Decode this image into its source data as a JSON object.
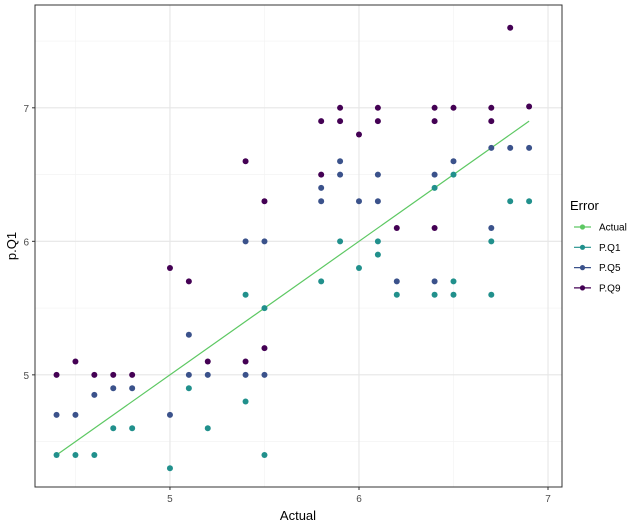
{
  "chart_data": {
    "type": "scatter",
    "title": "",
    "xlabel": "Actual",
    "ylabel": "p.Q1",
    "xlim": [
      4.286,
      7.074
    ],
    "ylim": [
      4.16,
      7.77
    ],
    "xticks": [
      5,
      6,
      7
    ],
    "yticks": [
      5,
      6,
      7
    ],
    "grid": true,
    "legend": {
      "title": "Error",
      "placement": "right"
    },
    "line": {
      "name": "Actual",
      "color": "#5dc863",
      "x": [
        4.4,
        6.9
      ],
      "y": [
        4.4,
        6.9
      ]
    },
    "series": [
      {
        "name": "P.Q1",
        "color": "#21908c",
        "points": [
          [
            4.4,
            4.4
          ],
          [
            4.5,
            4.4
          ],
          [
            4.6,
            4.4
          ],
          [
            4.7,
            4.6
          ],
          [
            4.8,
            4.6
          ],
          [
            5.0,
            4.3
          ],
          [
            5.1,
            4.9
          ],
          [
            5.2,
            4.6
          ],
          [
            5.4,
            4.8
          ],
          [
            5.4,
            5.6
          ],
          [
            5.5,
            4.4
          ],
          [
            5.5,
            5.5
          ],
          [
            5.8,
            5.7
          ],
          [
            5.9,
            6.0
          ],
          [
            6.0,
            5.8
          ],
          [
            6.1,
            6.0
          ],
          [
            6.1,
            5.9
          ],
          [
            6.2,
            5.6
          ],
          [
            6.4,
            5.6
          ],
          [
            6.4,
            6.4
          ],
          [
            6.5,
            5.6
          ],
          [
            6.5,
            5.7
          ],
          [
            6.5,
            6.5
          ],
          [
            6.7,
            5.6
          ],
          [
            6.7,
            6.0
          ],
          [
            6.8,
            6.3
          ],
          [
            6.9,
            6.3
          ]
        ]
      },
      {
        "name": "P.Q5",
        "color": "#3b528b",
        "points": [
          [
            4.4,
            4.7
          ],
          [
            4.5,
            4.7
          ],
          [
            4.6,
            4.85
          ],
          [
            4.7,
            4.9
          ],
          [
            4.8,
            4.9
          ],
          [
            5.0,
            4.7
          ],
          [
            5.1,
            5.0
          ],
          [
            5.1,
            5.3
          ],
          [
            5.2,
            5.0
          ],
          [
            5.4,
            5.0
          ],
          [
            5.4,
            6.0
          ],
          [
            5.5,
            5.0
          ],
          [
            5.5,
            6.0
          ],
          [
            5.8,
            6.4
          ],
          [
            5.8,
            6.3
          ],
          [
            5.9,
            6.6
          ],
          [
            5.9,
            6.5
          ],
          [
            6.0,
            6.3
          ],
          [
            6.1,
            6.5
          ],
          [
            6.1,
            6.3
          ],
          [
            6.2,
            5.7
          ],
          [
            6.4,
            5.7
          ],
          [
            6.4,
            6.5
          ],
          [
            6.5,
            6.6
          ],
          [
            6.7,
            6.1
          ],
          [
            6.7,
            6.7
          ],
          [
            6.8,
            6.7
          ],
          [
            6.9,
            6.7
          ]
        ]
      },
      {
        "name": "P.Q9",
        "color": "#440154",
        "points": [
          [
            4.4,
            5.0
          ],
          [
            4.5,
            5.1
          ],
          [
            4.6,
            5.0
          ],
          [
            4.7,
            5.0
          ],
          [
            4.8,
            5.0
          ],
          [
            5.0,
            5.8
          ],
          [
            5.1,
            5.7
          ],
          [
            5.2,
            5.1
          ],
          [
            5.4,
            5.1
          ],
          [
            5.4,
            6.6
          ],
          [
            5.5,
            5.2
          ],
          [
            5.5,
            6.3
          ],
          [
            5.8,
            6.9
          ],
          [
            5.8,
            6.5
          ],
          [
            5.9,
            7.0
          ],
          [
            5.9,
            6.9
          ],
          [
            6.0,
            6.8
          ],
          [
            6.1,
            7.0
          ],
          [
            6.1,
            6.9
          ],
          [
            6.2,
            6.1
          ],
          [
            6.4,
            7.0
          ],
          [
            6.4,
            6.9
          ],
          [
            6.4,
            6.1
          ],
          [
            6.5,
            7.0
          ],
          [
            6.7,
            7.0
          ],
          [
            6.7,
            6.9
          ],
          [
            6.8,
            7.6
          ],
          [
            6.9,
            7.01
          ]
        ]
      }
    ]
  }
}
